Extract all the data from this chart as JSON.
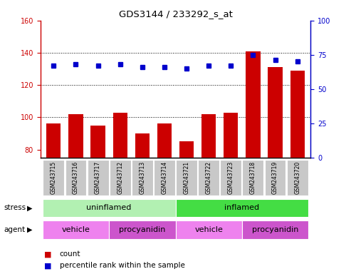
{
  "title": "GDS3144 / 233292_s_at",
  "samples": [
    "GSM243715",
    "GSM243716",
    "GSM243717",
    "GSM243712",
    "GSM243713",
    "GSM243714",
    "GSM243721",
    "GSM243722",
    "GSM243723",
    "GSM243718",
    "GSM243719",
    "GSM243720"
  ],
  "counts": [
    96,
    102,
    95,
    103,
    90,
    96,
    85,
    102,
    103,
    141,
    131,
    129
  ],
  "percentiles": [
    67,
    68,
    67,
    68,
    66,
    66,
    65,
    67,
    67,
    75,
    71,
    70
  ],
  "ylim_left": [
    75,
    160
  ],
  "ylim_right": [
    0,
    100
  ],
  "yticks_left": [
    80,
    100,
    120,
    140,
    160
  ],
  "yticks_right": [
    0,
    25,
    50,
    75,
    100
  ],
  "bar_color": "#cc0000",
  "dot_color": "#0000cc",
  "stress_groups": [
    {
      "label": "uninflamed",
      "start": 0,
      "end": 6,
      "color": "#b2f0b2"
    },
    {
      "label": "inflamed",
      "start": 6,
      "end": 12,
      "color": "#44dd44"
    }
  ],
  "agent_groups": [
    {
      "label": "vehicle",
      "start": 0,
      "end": 3,
      "color": "#ee82ee"
    },
    {
      "label": "procyanidin",
      "start": 3,
      "end": 6,
      "color": "#cc55cc"
    },
    {
      "label": "vehicle",
      "start": 6,
      "end": 9,
      "color": "#ee82ee"
    },
    {
      "label": "procyanidin",
      "start": 9,
      "end": 12,
      "color": "#cc55cc"
    }
  ],
  "left_axis_color": "#cc0000",
  "right_axis_color": "#0000cc",
  "tick_bg_color": "#c8c8c8",
  "stress_label": "stress",
  "agent_label": "agent",
  "legend_count_color": "#cc0000",
  "legend_dot_color": "#0000cc",
  "gridline_values": [
    100,
    120,
    140
  ]
}
